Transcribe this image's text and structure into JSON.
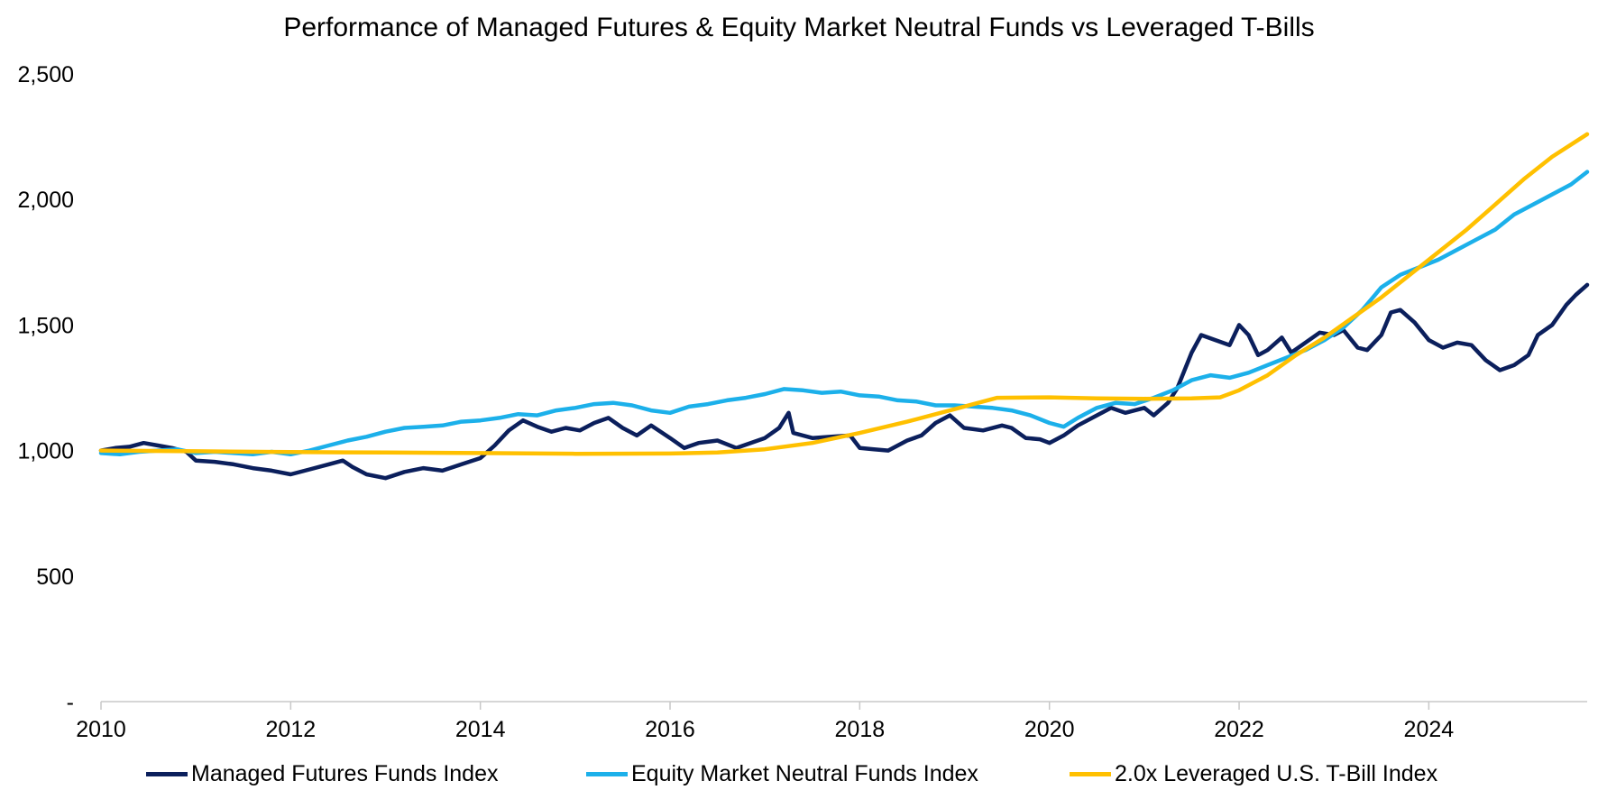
{
  "chart_data": {
    "type": "line",
    "title": "Performance of Managed Futures & Equity Market Neutral Funds vs Leveraged T-Bills",
    "xlabel": "",
    "ylabel": "",
    "xlim": [
      2010.0,
      2025.67
    ],
    "ylim": [
      0,
      2500
    ],
    "x_ticks": [
      {
        "value": 2010,
        "label": "2010"
      },
      {
        "value": 2012,
        "label": "2012"
      },
      {
        "value": 2014,
        "label": "2014"
      },
      {
        "value": 2016,
        "label": "2016"
      },
      {
        "value": 2018,
        "label": "2018"
      },
      {
        "value": 2020,
        "label": "2020"
      },
      {
        "value": 2022,
        "label": "2022"
      },
      {
        "value": 2024,
        "label": "2024"
      }
    ],
    "y_ticks": [
      {
        "value": 0,
        "label": "-"
      },
      {
        "value": 500,
        "label": "500"
      },
      {
        "value": 1000,
        "label": "1,000"
      },
      {
        "value": 1500,
        "label": "1,500"
      },
      {
        "value": 2000,
        "label": "2,000"
      },
      {
        "value": 2500,
        "label": "2,500"
      }
    ],
    "grid": false,
    "legend_position": "bottom",
    "series": [
      {
        "name": "Managed Futures Funds Index",
        "color": "#0b1f5c",
        "points": [
          [
            2010.0,
            1000
          ],
          [
            2010.15,
            1010
          ],
          [
            2010.3,
            1015
          ],
          [
            2010.45,
            1030
          ],
          [
            2010.6,
            1020
          ],
          [
            2010.75,
            1010
          ],
          [
            2010.9,
            995
          ],
          [
            2011.0,
            960
          ],
          [
            2011.2,
            955
          ],
          [
            2011.4,
            945
          ],
          [
            2011.6,
            930
          ],
          [
            2011.8,
            920
          ],
          [
            2012.0,
            905
          ],
          [
            2012.2,
            925
          ],
          [
            2012.4,
            945
          ],
          [
            2012.55,
            960
          ],
          [
            2012.65,
            935
          ],
          [
            2012.8,
            905
          ],
          [
            2013.0,
            890
          ],
          [
            2013.2,
            915
          ],
          [
            2013.4,
            930
          ],
          [
            2013.6,
            920
          ],
          [
            2013.8,
            945
          ],
          [
            2014.0,
            970
          ],
          [
            2014.15,
            1020
          ],
          [
            2014.3,
            1080
          ],
          [
            2014.45,
            1120
          ],
          [
            2014.6,
            1095
          ],
          [
            2014.75,
            1075
          ],
          [
            2014.9,
            1090
          ],
          [
            2015.05,
            1080
          ],
          [
            2015.2,
            1110
          ],
          [
            2015.35,
            1130
          ],
          [
            2015.5,
            1090
          ],
          [
            2015.65,
            1060
          ],
          [
            2015.8,
            1100
          ],
          [
            2016.0,
            1050
          ],
          [
            2016.15,
            1010
          ],
          [
            2016.3,
            1030
          ],
          [
            2016.5,
            1040
          ],
          [
            2016.7,
            1010
          ],
          [
            2016.85,
            1030
          ],
          [
            2017.0,
            1050
          ],
          [
            2017.15,
            1090
          ],
          [
            2017.25,
            1150
          ],
          [
            2017.3,
            1070
          ],
          [
            2017.5,
            1050
          ],
          [
            2017.7,
            1055
          ],
          [
            2017.9,
            1060
          ],
          [
            2018.0,
            1010
          ],
          [
            2018.15,
            1005
          ],
          [
            2018.3,
            1000
          ],
          [
            2018.5,
            1040
          ],
          [
            2018.65,
            1060
          ],
          [
            2018.8,
            1110
          ],
          [
            2018.95,
            1140
          ],
          [
            2019.1,
            1090
          ],
          [
            2019.3,
            1080
          ],
          [
            2019.5,
            1100
          ],
          [
            2019.6,
            1090
          ],
          [
            2019.75,
            1050
          ],
          [
            2019.9,
            1045
          ],
          [
            2020.0,
            1030
          ],
          [
            2020.15,
            1060
          ],
          [
            2020.3,
            1100
          ],
          [
            2020.5,
            1140
          ],
          [
            2020.65,
            1170
          ],
          [
            2020.8,
            1150
          ],
          [
            2021.0,
            1170
          ],
          [
            2021.1,
            1140
          ],
          [
            2021.25,
            1190
          ],
          [
            2021.35,
            1250
          ],
          [
            2021.5,
            1390
          ],
          [
            2021.6,
            1460
          ],
          [
            2021.75,
            1440
          ],
          [
            2021.9,
            1420
          ],
          [
            2022.0,
            1500
          ],
          [
            2022.1,
            1460
          ],
          [
            2022.2,
            1380
          ],
          [
            2022.3,
            1400
          ],
          [
            2022.45,
            1450
          ],
          [
            2022.55,
            1390
          ],
          [
            2022.7,
            1430
          ],
          [
            2022.85,
            1470
          ],
          [
            2023.0,
            1460
          ],
          [
            2023.1,
            1480
          ],
          [
            2023.25,
            1410
          ],
          [
            2023.35,
            1400
          ],
          [
            2023.5,
            1460
          ],
          [
            2023.6,
            1550
          ],
          [
            2023.7,
            1560
          ],
          [
            2023.85,
            1510
          ],
          [
            2024.0,
            1440
          ],
          [
            2024.15,
            1410
          ],
          [
            2024.3,
            1430
          ],
          [
            2024.45,
            1420
          ],
          [
            2024.6,
            1360
          ],
          [
            2024.75,
            1320
          ],
          [
            2024.9,
            1340
          ],
          [
            2025.05,
            1380
          ],
          [
            2025.15,
            1460
          ],
          [
            2025.3,
            1500
          ],
          [
            2025.45,
            1580
          ],
          [
            2025.55,
            1620
          ],
          [
            2025.67,
            1660
          ]
        ]
      },
      {
        "name": "Equity Market Neutral Funds Index",
        "color": "#1cb0ea",
        "points": [
          [
            2010.0,
            990
          ],
          [
            2010.2,
            985
          ],
          [
            2010.4,
            995
          ],
          [
            2010.6,
            1000
          ],
          [
            2010.8,
            1005
          ],
          [
            2011.0,
            990
          ],
          [
            2011.2,
            995
          ],
          [
            2011.4,
            990
          ],
          [
            2011.6,
            985
          ],
          [
            2011.8,
            995
          ],
          [
            2012.0,
            985
          ],
          [
            2012.2,
            1000
          ],
          [
            2012.4,
            1020
          ],
          [
            2012.6,
            1040
          ],
          [
            2012.8,
            1055
          ],
          [
            2013.0,
            1075
          ],
          [
            2013.2,
            1090
          ],
          [
            2013.4,
            1095
          ],
          [
            2013.6,
            1100
          ],
          [
            2013.8,
            1115
          ],
          [
            2014.0,
            1120
          ],
          [
            2014.2,
            1130
          ],
          [
            2014.4,
            1145
          ],
          [
            2014.6,
            1140
          ],
          [
            2014.8,
            1160
          ],
          [
            2015.0,
            1170
          ],
          [
            2015.2,
            1185
          ],
          [
            2015.4,
            1190
          ],
          [
            2015.6,
            1180
          ],
          [
            2015.8,
            1160
          ],
          [
            2016.0,
            1150
          ],
          [
            2016.2,
            1175
          ],
          [
            2016.4,
            1185
          ],
          [
            2016.6,
            1200
          ],
          [
            2016.8,
            1210
          ],
          [
            2017.0,
            1225
          ],
          [
            2017.2,
            1245
          ],
          [
            2017.4,
            1240
          ],
          [
            2017.6,
            1230
          ],
          [
            2017.8,
            1235
          ],
          [
            2018.0,
            1220
          ],
          [
            2018.2,
            1215
          ],
          [
            2018.4,
            1200
          ],
          [
            2018.6,
            1195
          ],
          [
            2018.8,
            1180
          ],
          [
            2019.0,
            1180
          ],
          [
            2019.2,
            1175
          ],
          [
            2019.4,
            1170
          ],
          [
            2019.6,
            1160
          ],
          [
            2019.8,
            1140
          ],
          [
            2020.0,
            1110
          ],
          [
            2020.15,
            1095
          ],
          [
            2020.3,
            1130
          ],
          [
            2020.5,
            1170
          ],
          [
            2020.7,
            1190
          ],
          [
            2020.9,
            1185
          ],
          [
            2021.1,
            1210
          ],
          [
            2021.3,
            1240
          ],
          [
            2021.5,
            1280
          ],
          [
            2021.7,
            1300
          ],
          [
            2021.9,
            1290
          ],
          [
            2022.1,
            1310
          ],
          [
            2022.3,
            1340
          ],
          [
            2022.5,
            1370
          ],
          [
            2022.7,
            1400
          ],
          [
            2022.9,
            1440
          ],
          [
            2023.1,
            1490
          ],
          [
            2023.3,
            1560
          ],
          [
            2023.5,
            1650
          ],
          [
            2023.7,
            1700
          ],
          [
            2023.9,
            1730
          ],
          [
            2024.1,
            1760
          ],
          [
            2024.3,
            1800
          ],
          [
            2024.5,
            1840
          ],
          [
            2024.7,
            1880
          ],
          [
            2024.9,
            1940
          ],
          [
            2025.1,
            1980
          ],
          [
            2025.3,
            2020
          ],
          [
            2025.5,
            2060
          ],
          [
            2025.67,
            2110
          ]
        ]
      },
      {
        "name": "2.0x Leveraged U.S. T-Bill Index",
        "color": "#ffc000",
        "points": [
          [
            2010.0,
            1000
          ],
          [
            2011.0,
            997
          ],
          [
            2012.0,
            994
          ],
          [
            2013.0,
            992
          ],
          [
            2014.0,
            990
          ],
          [
            2015.0,
            987
          ],
          [
            2016.0,
            988
          ],
          [
            2016.5,
            992
          ],
          [
            2017.0,
            1005
          ],
          [
            2017.5,
            1030
          ],
          [
            2018.0,
            1070
          ],
          [
            2018.5,
            1115
          ],
          [
            2019.0,
            1165
          ],
          [
            2019.45,
            1210
          ],
          [
            2020.0,
            1212
          ],
          [
            2020.5,
            1208
          ],
          [
            2021.0,
            1206
          ],
          [
            2021.5,
            1208
          ],
          [
            2021.8,
            1212
          ],
          [
            2022.0,
            1240
          ],
          [
            2022.3,
            1300
          ],
          [
            2022.6,
            1380
          ],
          [
            2022.9,
            1450
          ],
          [
            2023.2,
            1530
          ],
          [
            2023.5,
            1610
          ],
          [
            2023.8,
            1700
          ],
          [
            2024.1,
            1790
          ],
          [
            2024.4,
            1880
          ],
          [
            2024.7,
            1980
          ],
          [
            2025.0,
            2080
          ],
          [
            2025.3,
            2170
          ],
          [
            2025.67,
            2260
          ]
        ]
      }
    ]
  }
}
